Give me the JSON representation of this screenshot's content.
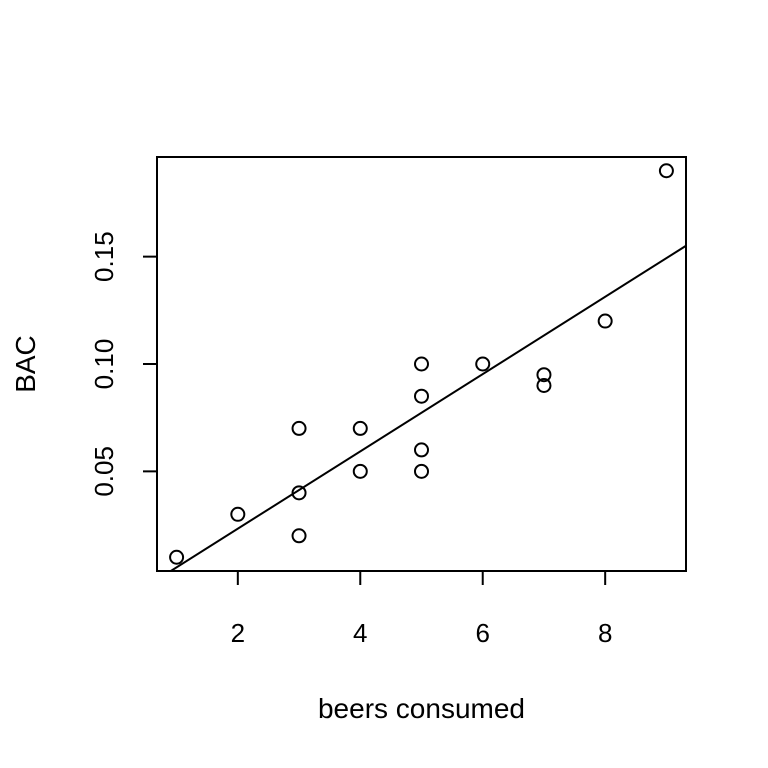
{
  "chart_data": {
    "type": "scatter",
    "title": "",
    "xlabel": "beers consumed",
    "ylabel": "BAC",
    "xlim": [
      0.68,
      9.32
    ],
    "ylim": [
      0.0036,
      0.1964
    ],
    "x_ticks": [
      2,
      4,
      6,
      8
    ],
    "x_tick_labels": [
      "2",
      "4",
      "6",
      "8"
    ],
    "y_ticks": [
      0.05,
      0.1,
      0.15
    ],
    "y_tick_labels": [
      "0.05",
      "0.10",
      "0.15"
    ],
    "grid": false,
    "points": [
      {
        "x": 1,
        "y": 0.01
      },
      {
        "x": 2,
        "y": 0.03
      },
      {
        "x": 3,
        "y": 0.02
      },
      {
        "x": 3,
        "y": 0.04
      },
      {
        "x": 3,
        "y": 0.07
      },
      {
        "x": 4,
        "y": 0.05
      },
      {
        "x": 4,
        "y": 0.07
      },
      {
        "x": 5,
        "y": 0.05
      },
      {
        "x": 5,
        "y": 0.06
      },
      {
        "x": 5,
        "y": 0.085
      },
      {
        "x": 5,
        "y": 0.1
      },
      {
        "x": 6,
        "y": 0.1
      },
      {
        "x": 7,
        "y": 0.09
      },
      {
        "x": 7,
        "y": 0.095
      },
      {
        "x": 8,
        "y": 0.12
      },
      {
        "x": 9,
        "y": 0.19
      }
    ],
    "fit_line": {
      "intercept": -0.0127,
      "slope": 0.018
    }
  }
}
